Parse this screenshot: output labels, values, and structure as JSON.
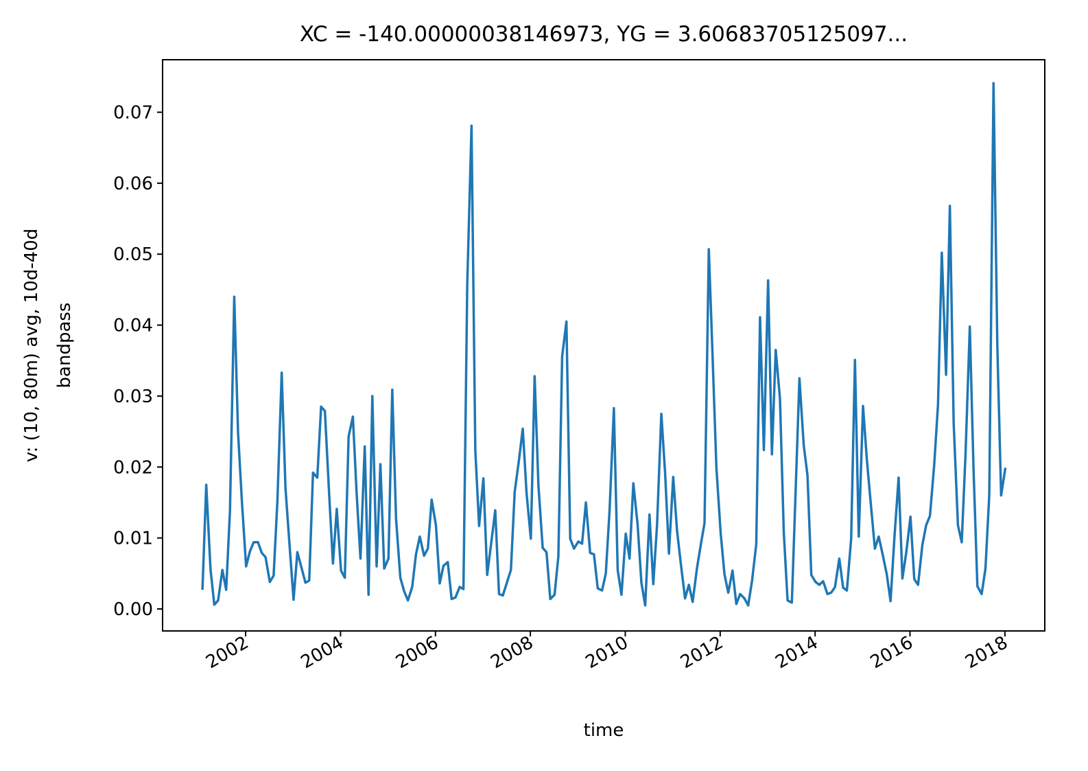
{
  "chart_data": {
    "type": "line",
    "title": "XC = -140.00000038146973, YG = 3.60683705125097...",
    "xlabel": "time",
    "ylabel": [
      "v: (10, 80m) avg, 10d-40d",
      "bandpass"
    ],
    "x": [
      2001.09,
      2001.17,
      2001.26,
      2001.34,
      2001.42,
      2001.51,
      2001.59,
      2001.67,
      2001.76,
      2001.84,
      2001.92,
      2002.01,
      2002.09,
      2002.17,
      2002.26,
      2002.34,
      2002.42,
      2002.51,
      2002.59,
      2002.67,
      2002.76,
      2002.84,
      2002.92,
      2003.01,
      2003.09,
      2003.17,
      2003.26,
      2003.34,
      2003.42,
      2003.51,
      2003.59,
      2003.67,
      2003.76,
      2003.84,
      2003.92,
      2004.01,
      2004.09,
      2004.17,
      2004.26,
      2004.34,
      2004.42,
      2004.51,
      2004.59,
      2004.67,
      2004.76,
      2004.84,
      2004.92,
      2005.01,
      2005.09,
      2005.17,
      2005.26,
      2005.34,
      2005.42,
      2005.51,
      2005.59,
      2005.67,
      2005.76,
      2005.84,
      2005.92,
      2006.01,
      2006.09,
      2006.17,
      2006.26,
      2006.34,
      2006.42,
      2006.51,
      2006.59,
      2006.67,
      2006.76,
      2006.84,
      2006.92,
      2007.01,
      2007.09,
      2007.17,
      2007.26,
      2007.34,
      2007.42,
      2007.51,
      2007.59,
      2007.67,
      2007.76,
      2007.84,
      2007.92,
      2008.01,
      2008.09,
      2008.17,
      2008.26,
      2008.34,
      2008.42,
      2008.51,
      2008.59,
      2008.67,
      2008.76,
      2008.84,
      2008.92,
      2009.01,
      2009.09,
      2009.17,
      2009.26,
      2009.34,
      2009.42,
      2009.51,
      2009.59,
      2009.67,
      2009.76,
      2009.84,
      2009.92,
      2010.01,
      2010.09,
      2010.17,
      2010.26,
      2010.34,
      2010.42,
      2010.51,
      2010.59,
      2010.67,
      2010.76,
      2010.84,
      2010.92,
      2011.01,
      2011.09,
      2011.17,
      2011.26,
      2011.34,
      2011.42,
      2011.51,
      2011.59,
      2011.67,
      2011.76,
      2011.84,
      2011.92,
      2012.01,
      2012.09,
      2012.17,
      2012.26,
      2012.34,
      2012.42,
      2012.51,
      2012.59,
      2012.67,
      2012.76,
      2012.84,
      2012.92,
      2013.01,
      2013.09,
      2013.17,
      2013.26,
      2013.34,
      2013.42,
      2013.51,
      2013.59,
      2013.67,
      2013.76,
      2013.84,
      2013.92,
      2014.01,
      2014.09,
      2014.17,
      2014.26,
      2014.34,
      2014.42,
      2014.51,
      2014.59,
      2014.67,
      2014.76,
      2014.84,
      2014.92,
      2015.01,
      2015.09,
      2015.17,
      2015.26,
      2015.34,
      2015.42,
      2015.51,
      2015.59,
      2015.67,
      2015.76,
      2015.84,
      2015.92,
      2016.01,
      2016.09,
      2016.17,
      2016.26,
      2016.34,
      2016.42,
      2016.51,
      2016.59,
      2016.67,
      2016.76,
      2016.84,
      2016.92,
      2017.01,
      2017.09,
      2017.17,
      2017.26,
      2017.34,
      2017.42,
      2017.51,
      2017.59,
      2017.67,
      2017.76,
      2017.84,
      2017.92,
      2018.01
    ],
    "series": [
      {
        "color": "#1f77b4",
        "values": [
          0.0027,
          0.0175,
          0.0056,
          0.0006,
          0.0012,
          0.0055,
          0.0027,
          0.0138,
          0.044,
          0.0249,
          0.0153,
          0.006,
          0.0081,
          0.0094,
          0.0094,
          0.0079,
          0.0073,
          0.0038,
          0.0047,
          0.0153,
          0.0333,
          0.017,
          0.0095,
          0.0013,
          0.008,
          0.006,
          0.0037,
          0.004,
          0.0192,
          0.0185,
          0.0285,
          0.0279,
          0.0162,
          0.0064,
          0.0141,
          0.0054,
          0.0044,
          0.0243,
          0.0271,
          0.0162,
          0.0071,
          0.0229,
          0.002,
          0.03,
          0.006,
          0.0204,
          0.0057,
          0.0071,
          0.0309,
          0.0127,
          0.0044,
          0.0025,
          0.0012,
          0.0031,
          0.0077,
          0.0102,
          0.0075,
          0.0085,
          0.0154,
          0.0118,
          0.0036,
          0.0061,
          0.0066,
          0.0014,
          0.0016,
          0.0031,
          0.0028,
          0.0457,
          0.0681,
          0.0223,
          0.0117,
          0.0184,
          0.0048,
          0.009,
          0.0139,
          0.0021,
          0.0019,
          0.0038,
          0.0055,
          0.0165,
          0.021,
          0.0254,
          0.0163,
          0.0099,
          0.0328,
          0.0174,
          0.0086,
          0.008,
          0.0014,
          0.002,
          0.0074,
          0.0356,
          0.0405,
          0.0099,
          0.0085,
          0.0095,
          0.0092,
          0.015,
          0.0079,
          0.0077,
          0.0029,
          0.0026,
          0.005,
          0.014,
          0.0283,
          0.0055,
          0.002,
          0.0106,
          0.0071,
          0.0177,
          0.0119,
          0.0037,
          0.0005,
          0.0133,
          0.0035,
          0.0119,
          0.0275,
          0.0191,
          0.0078,
          0.0186,
          0.0111,
          0.0064,
          0.0015,
          0.0034,
          0.001,
          0.0057,
          0.009,
          0.0121,
          0.0507,
          0.0356,
          0.0199,
          0.0107,
          0.0049,
          0.0023,
          0.0054,
          0.0007,
          0.0021,
          0.0015,
          0.0005,
          0.0039,
          0.0091,
          0.0411,
          0.0224,
          0.0463,
          0.0218,
          0.0365,
          0.0296,
          0.0108,
          0.0012,
          0.0009,
          0.0167,
          0.0325,
          0.0231,
          0.0188,
          0.0048,
          0.0038,
          0.0034,
          0.0039,
          0.0021,
          0.0023,
          0.0031,
          0.0071,
          0.003,
          0.0026,
          0.0099,
          0.0351,
          0.0102,
          0.0286,
          0.0211,
          0.0151,
          0.0085,
          0.0102,
          0.0078,
          0.0049,
          0.0011,
          0.0099,
          0.0185,
          0.0043,
          0.0079,
          0.013,
          0.0042,
          0.0034,
          0.009,
          0.0118,
          0.0131,
          0.0203,
          0.0288,
          0.0502,
          0.033,
          0.0568,
          0.0262,
          0.0118,
          0.0094,
          0.0218,
          0.0398,
          0.0194,
          0.0032,
          0.0021,
          0.0057,
          0.016,
          0.0741,
          0.0371,
          0.016,
          0.0199
        ]
      }
    ],
    "xlim": [
      2000.25,
      2018.84
    ],
    "ylim": [
      -0.0031,
      0.0774
    ],
    "xticks": [
      2002,
      2004,
      2006,
      2008,
      2010,
      2012,
      2014,
      2016,
      2018
    ],
    "yticks": [
      {
        "value": 0,
        "label": "0.00"
      },
      {
        "value": 0.01,
        "label": "0.01"
      },
      {
        "value": 0.02,
        "label": "0.02"
      },
      {
        "value": 0.03,
        "label": "0.03"
      },
      {
        "value": 0.04,
        "label": "0.04"
      },
      {
        "value": 0.05,
        "label": "0.05"
      },
      {
        "value": 0.06,
        "label": "0.06"
      },
      {
        "value": 0.07,
        "label": "0.07"
      }
    ],
    "grid": false
  }
}
